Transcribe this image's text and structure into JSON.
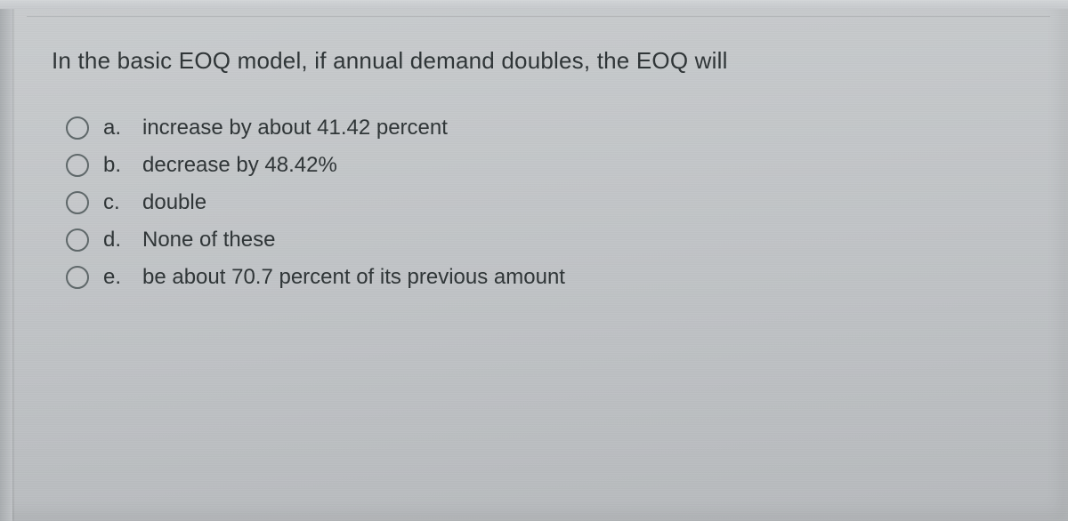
{
  "background_color": "#c6c9cc",
  "text_color": "#2e3436",
  "radio_border_color": "#5e6769",
  "question_fontsize_pt": 20,
  "option_fontsize_pt": 18,
  "question": "In the basic EOQ model, if annual demand doubles, the EOQ will",
  "options": [
    {
      "letter": "a.",
      "text": "increase by about 41.42 percent",
      "selected": false
    },
    {
      "letter": "b.",
      "text": "decrease by 48.42%",
      "selected": false
    },
    {
      "letter": "c.",
      "text": "double",
      "selected": false
    },
    {
      "letter": "d.",
      "text": "None of these",
      "selected": false
    },
    {
      "letter": "e.",
      "text": "be about 70.7 percent of its previous amount",
      "selected": false
    }
  ]
}
